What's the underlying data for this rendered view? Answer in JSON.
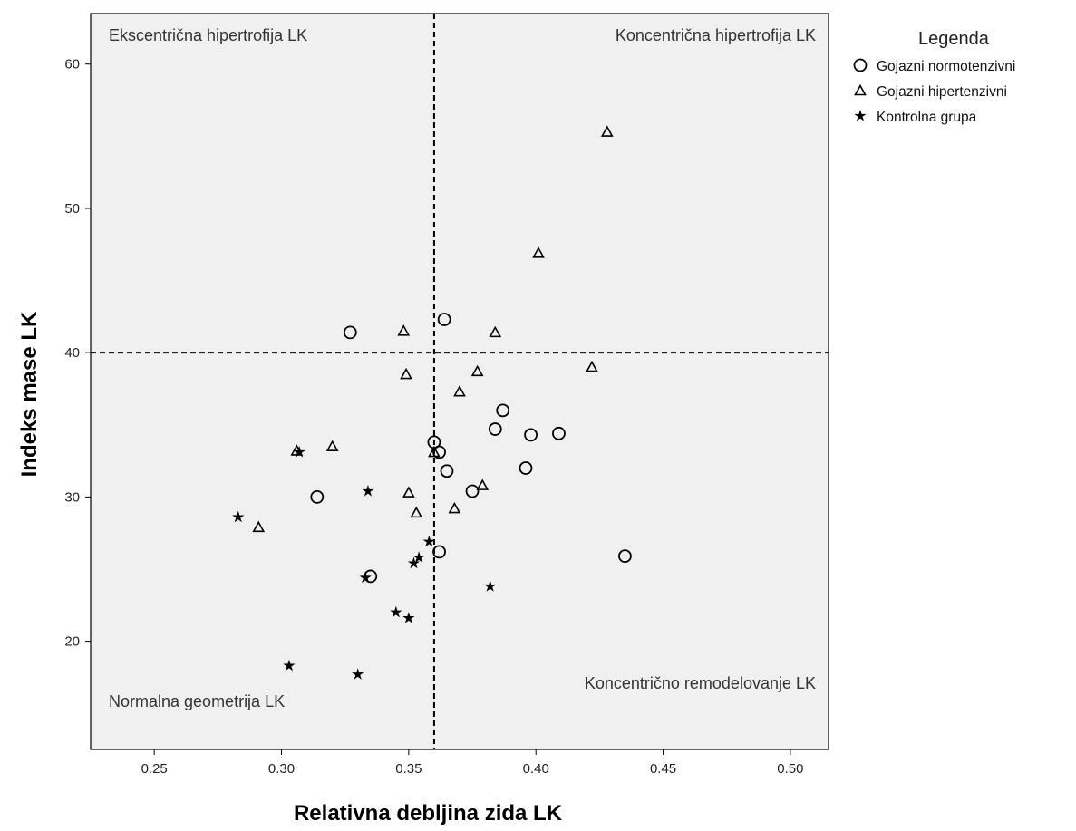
{
  "chart_data": {
    "type": "scatter",
    "xlabel": "Relativna debljina zida LK",
    "ylabel": "Indeks mase LK",
    "xlim": [
      0.225,
      0.515
    ],
    "ylim": [
      12.5,
      63.5
    ],
    "x_ticks": [
      "0.25",
      "0.30",
      "0.35",
      "0.40",
      "0.45",
      "0.50"
    ],
    "y_ticks": [
      "20",
      "30",
      "40",
      "50",
      "60"
    ],
    "reference_lines": {
      "x": 0.36,
      "y": 40,
      "style": "dashed"
    },
    "quadrant_labels": {
      "top_left": "Ekscentrična hipertrofija LK",
      "top_right": "Koncentrična hipertrofija LK",
      "bottom_left": "Normalna geometrija LK",
      "bottom_right": "Koncentrično remodelovanje LK"
    },
    "legend": {
      "title": "Legenda",
      "placement": "right",
      "entries": [
        {
          "marker": "circle",
          "label": "Gojazni normotenzivni"
        },
        {
          "marker": "triangle",
          "label": "Gojazni hipertenzivni"
        },
        {
          "marker": "star",
          "label": "Kontrolna grupa"
        }
      ]
    },
    "series": [
      {
        "name": "Gojazni normotenzivni",
        "marker": "circle",
        "points": [
          [
            0.327,
            41.4
          ],
          [
            0.364,
            42.3
          ],
          [
            0.387,
            36.0
          ],
          [
            0.384,
            34.7
          ],
          [
            0.398,
            34.3
          ],
          [
            0.409,
            34.4
          ],
          [
            0.36,
            33.8
          ],
          [
            0.362,
            33.1
          ],
          [
            0.365,
            31.8
          ],
          [
            0.396,
            32.0
          ],
          [
            0.375,
            30.4
          ],
          [
            0.314,
            30.0
          ],
          [
            0.335,
            24.5
          ],
          [
            0.362,
            26.2
          ],
          [
            0.435,
            25.9
          ]
        ]
      },
      {
        "name": "Gojazni hipertenzivni",
        "marker": "triangle",
        "points": [
          [
            0.428,
            55.3
          ],
          [
            0.401,
            46.9
          ],
          [
            0.348,
            41.5
          ],
          [
            0.384,
            41.4
          ],
          [
            0.349,
            38.5
          ],
          [
            0.377,
            38.7
          ],
          [
            0.422,
            39.0
          ],
          [
            0.37,
            37.3
          ],
          [
            0.32,
            33.5
          ],
          [
            0.306,
            33.2
          ],
          [
            0.36,
            33.1
          ],
          [
            0.35,
            30.3
          ],
          [
            0.353,
            28.9
          ],
          [
            0.368,
            29.2
          ],
          [
            0.379,
            30.8
          ],
          [
            0.291,
            27.9
          ]
        ]
      },
      {
        "name": "Kontrolna grupa",
        "marker": "star",
        "points": [
          [
            0.307,
            33.1
          ],
          [
            0.334,
            30.4
          ],
          [
            0.283,
            28.6
          ],
          [
            0.358,
            26.9
          ],
          [
            0.354,
            25.8
          ],
          [
            0.352,
            25.4
          ],
          [
            0.333,
            24.4
          ],
          [
            0.382,
            23.8
          ],
          [
            0.345,
            22.0
          ],
          [
            0.35,
            21.6
          ],
          [
            0.303,
            18.3
          ],
          [
            0.33,
            17.7
          ]
        ]
      }
    ]
  }
}
